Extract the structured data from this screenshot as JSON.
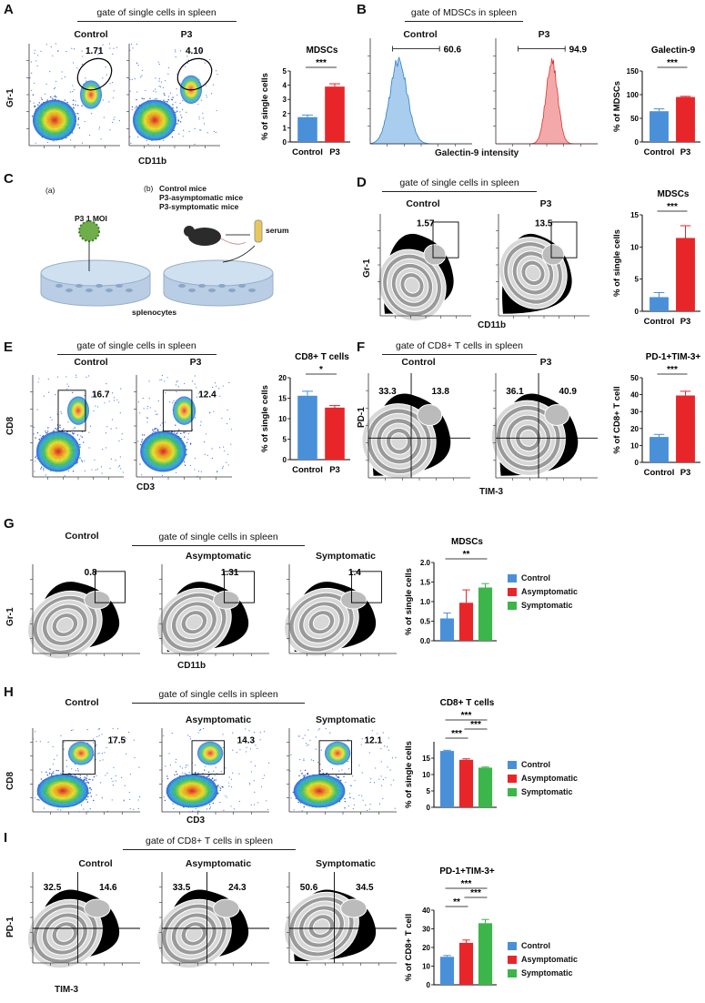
{
  "panels": {
    "A": {
      "letter": "A",
      "gate_title": "gate of single cells in spleen",
      "x_axis": "CD11b",
      "y_axis": "Gr-1",
      "plots": [
        {
          "group": "Control",
          "value": "1.71"
        },
        {
          "group": "P3",
          "value": "4.10"
        }
      ]
    },
    "B": {
      "letter": "B",
      "gate_title": "gate of MDSCs in spleen",
      "x_axis": "Galectin-9 intensity",
      "plots": [
        {
          "group": "Control",
          "value": "60.6"
        },
        {
          "group": "P3",
          "value": "94.9"
        }
      ]
    },
    "C": {
      "letter": "C",
      "a_label": "(a)",
      "b_label": "(b)",
      "virus_label": "P3 1 MOI",
      "mice": [
        "Control mice",
        "P3-asymptomatic mice",
        "P3-symptomatic mice"
      ],
      "serum_label": "serum",
      "cells_label": "splenocytes"
    },
    "D": {
      "letter": "D",
      "gate_title": "gate of single cells in spleen",
      "x_axis": "CD11b",
      "y_axis": "Gr-1",
      "plots": [
        {
          "group": "Control",
          "value": "1.57"
        },
        {
          "group": "P3",
          "value": "13.5"
        }
      ]
    },
    "E": {
      "letter": "E",
      "gate_title": "gate of single cells in spleen",
      "x_axis": "CD3",
      "y_axis": "CD8",
      "plots": [
        {
          "group": "Control",
          "value": "16.7"
        },
        {
          "group": "P3",
          "value": "12.4"
        }
      ]
    },
    "F": {
      "letter": "F",
      "gate_title": "gate of CD8+ T cells in spleen",
      "x_axis": "TIM-3",
      "y_axis": "PD-1",
      "plots": [
        {
          "group": "Control",
          "q1": "33.3",
          "q2": "13.8"
        },
        {
          "group": "P3",
          "q1": "36.1",
          "q2": "40.9"
        }
      ]
    },
    "G": {
      "letter": "G",
      "gate_title": "gate of single cells in spleen",
      "x_axis": "CD11b",
      "y_axis": "Gr-1",
      "plots": [
        {
          "group": "Control",
          "value": "0.8"
        },
        {
          "group": "Asymptomatic",
          "value": "1.31"
        },
        {
          "group": "Symptomatic",
          "value": "1.4"
        }
      ]
    },
    "H": {
      "letter": "H",
      "gate_title": "gate of single cells in spleen",
      "x_axis": "CD3",
      "y_axis": "CD8",
      "plots": [
        {
          "group": "Control",
          "value": "17.5"
        },
        {
          "group": "Asymptomatic",
          "value": "14.3"
        },
        {
          "group": "Symptomatic",
          "value": "12.1"
        }
      ]
    },
    "I": {
      "letter": "I",
      "gate_title": "gate of CD8+ T cells in spleen",
      "x_axis": "TIM-3",
      "y_axis": "PD-1",
      "plots": [
        {
          "group": "Control",
          "q1": "32.5",
          "q2": "14.6"
        },
        {
          "group": "Asymptomatic",
          "q1": "33.5",
          "q2": "24.3"
        },
        {
          "group": "Symptomatic",
          "q1": "50.6",
          "q2": "34.5"
        }
      ]
    }
  },
  "legend": [
    "Control",
    "Asymptomatic",
    "Symptomatic"
  ],
  "colors": {
    "control": "#4a90d9",
    "p3": "#e8262a",
    "asymptomatic": "#e8262a",
    "symptomatic": "#3cb54a"
  },
  "chart_data": [
    {
      "panel": "A",
      "type": "bar",
      "title": "MDSCs",
      "ylabel": "% of single cells",
      "categories": [
        "Control",
        "P3"
      ],
      "values": [
        1.75,
        3.9
      ],
      "errors": [
        0.15,
        0.2
      ],
      "ylim": [
        0,
        5
      ],
      "yticks": [
        "0",
        "1",
        "2",
        "3",
        "4",
        "5"
      ],
      "significance": [
        {
          "from": 0,
          "to": 1,
          "label": "***"
        }
      ]
    },
    {
      "panel": "B",
      "type": "bar",
      "title": "Galectin-9",
      "ylabel": "% of MDSCs",
      "categories": [
        "Control",
        "P3"
      ],
      "values": [
        65,
        95
      ],
      "errors": [
        5,
        1.5
      ],
      "ylim": [
        0,
        150
      ],
      "yticks": [
        "0",
        "50",
        "100",
        "150"
      ],
      "significance": [
        {
          "from": 0,
          "to": 1,
          "label": "***"
        }
      ]
    },
    {
      "panel": "D",
      "type": "bar",
      "title": "MDSCs",
      "ylabel": "% of single cells",
      "categories": [
        "Control",
        "P3"
      ],
      "values": [
        2.2,
        11.4
      ],
      "errors": [
        0.7,
        1.9
      ],
      "ylim": [
        0,
        15
      ],
      "yticks": [
        "0",
        "5",
        "10",
        "15"
      ],
      "significance": [
        {
          "from": 0,
          "to": 1,
          "label": "***"
        }
      ]
    },
    {
      "panel": "E",
      "type": "bar",
      "title": "CD8+ T cells",
      "ylabel": "% of single cells",
      "categories": [
        "Control",
        "P3"
      ],
      "values": [
        15.6,
        12.7
      ],
      "errors": [
        1.1,
        0.5
      ],
      "ylim": [
        0,
        20
      ],
      "yticks": [
        "0",
        "5",
        "10",
        "15",
        "20"
      ],
      "significance": [
        {
          "from": 0,
          "to": 1,
          "label": "*"
        }
      ]
    },
    {
      "panel": "F",
      "type": "bar",
      "title": "PD-1+TIM-3+",
      "ylabel": "% of CD8+ T cell",
      "categories": [
        "Control",
        "P3"
      ],
      "values": [
        15,
        39.5
      ],
      "errors": [
        1.5,
        2.5
      ],
      "ylim": [
        0,
        50
      ],
      "yticks": [
        "0",
        "10",
        "20",
        "30",
        "40",
        "50"
      ],
      "significance": [
        {
          "from": 0,
          "to": 1,
          "label": "***"
        }
      ]
    },
    {
      "panel": "G",
      "type": "bar",
      "title": "MDSCs",
      "ylabel": "% of single cells",
      "categories": [
        "Control",
        "Asymptomatic",
        "Symptomatic"
      ],
      "values": [
        0.57,
        0.97,
        1.36
      ],
      "errors": [
        0.14,
        0.33,
        0.1
      ],
      "ylim": [
        0,
        2
      ],
      "yticks": [
        "0.0",
        "0.5",
        "1.0",
        "1.5",
        "2.0"
      ],
      "significance": [
        {
          "from": 0,
          "to": 2,
          "label": "**"
        }
      ]
    },
    {
      "panel": "H",
      "type": "bar",
      "title": "CD8+ T cells",
      "ylabel": "% of single cells",
      "categories": [
        "Control",
        "Asymptomatic",
        "Symptomatic"
      ],
      "values": [
        17.2,
        14.5,
        12.1
      ],
      "errors": [
        0.2,
        0.3,
        0.2
      ],
      "ylim": [
        0,
        20
      ],
      "yticks": [
        "0",
        "5",
        "10",
        "15"
      ],
      "significance": [
        {
          "from": 0,
          "to": 2,
          "label": "***"
        },
        {
          "from": 1,
          "to": 2,
          "label": "***"
        },
        {
          "from": 0,
          "to": 1,
          "label": "***"
        }
      ]
    },
    {
      "panel": "I",
      "type": "bar",
      "title": "PD-1+TIM-3+",
      "ylabel": "% of CD8+ T cell",
      "categories": [
        "Control",
        "Asymptomatic",
        "Symptomatic"
      ],
      "values": [
        15,
        22.5,
        33
      ],
      "errors": [
        0.7,
        1.5,
        2
      ],
      "ylim": [
        0,
        40
      ],
      "yticks": [
        "0",
        "10",
        "20",
        "30",
        "40"
      ],
      "significance": [
        {
          "from": 0,
          "to": 2,
          "label": "***"
        },
        {
          "from": 1,
          "to": 2,
          "label": "***"
        },
        {
          "from": 0,
          "to": 1,
          "label": "**"
        }
      ]
    }
  ]
}
